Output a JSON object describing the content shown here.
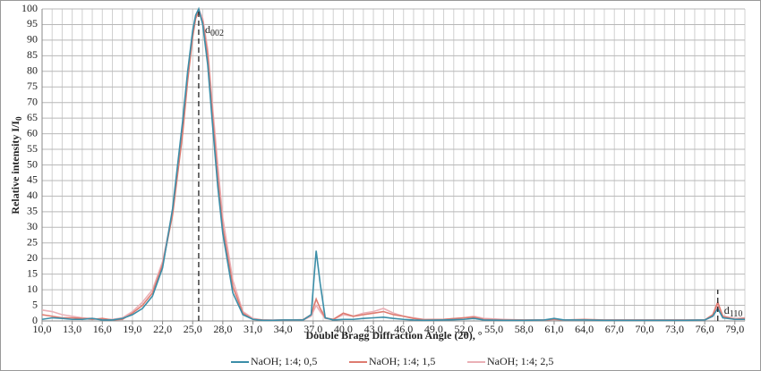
{
  "chart_data": {
    "type": "line",
    "y_label": "Relative intensity I/I",
    "y_label_sub": "0",
    "x_label": "Double Bragg Diffraction Angle (2θ), °",
    "x": [
      10,
      11,
      12,
      13,
      14,
      15,
      16,
      17,
      18,
      19,
      20,
      21,
      22,
      23,
      24,
      24.5,
      25,
      25.3,
      25.6,
      26,
      26.5,
      27,
      27.5,
      28,
      29,
      30,
      31,
      32,
      33,
      34,
      35,
      36,
      36.8,
      37.3,
      37.7,
      38.2,
      39,
      40,
      41,
      42,
      43,
      44,
      45,
      46,
      47,
      48,
      50,
      52,
      53,
      54,
      56,
      58,
      60,
      61,
      62,
      64,
      66,
      68,
      70,
      72,
      74,
      76,
      76.8,
      77.3,
      77.8,
      79,
      80
    ],
    "series": [
      {
        "name": "NaOH; 1:4; 0,5",
        "color": "#3b8ea8",
        "values": [
          0.5,
          1,
          0.8,
          0.5,
          0.5,
          0.8,
          0.3,
          0.3,
          0.8,
          2,
          4,
          8,
          17,
          36,
          64,
          80,
          93,
          98,
          100,
          95,
          82,
          62,
          43,
          28,
          9,
          2,
          0.5,
          0.2,
          0.2,
          0.3,
          0.3,
          0.3,
          2,
          22.5,
          12,
          1,
          0.3,
          0.5,
          0.5,
          0.8,
          1,
          1.2,
          0.8,
          0.5,
          0.3,
          0.2,
          0.3,
          0.5,
          0.8,
          0.3,
          0.2,
          0.2,
          0.3,
          0.8,
          0.3,
          0.3,
          0.2,
          0.2,
          0.2,
          0.2,
          0.2,
          0.3,
          1.5,
          4,
          1,
          0.5,
          0.5
        ]
      },
      {
        "name": "NaOH; 1:4; 1,5",
        "color": "#de7b70",
        "values": [
          2,
          1.5,
          1,
          1,
          0.8,
          0.5,
          0.8,
          0.3,
          0.5,
          2.5,
          5,
          9,
          18,
          34,
          60,
          77,
          91,
          97,
          99,
          96,
          85,
          65,
          46,
          30,
          11,
          2.5,
          0.5,
          0.3,
          0.2,
          0.3,
          0.3,
          0.4,
          2,
          7,
          4,
          1,
          0.5,
          2.5,
          1.5,
          2,
          2.5,
          3,
          2,
          1.5,
          0.8,
          0.4,
          0.5,
          1,
          1.2,
          0.5,
          0.3,
          0.3,
          0.3,
          0.5,
          0.3,
          0.5,
          0.3,
          0.3,
          0.3,
          0.3,
          0.3,
          0.3,
          2,
          6,
          1.5,
          0.5,
          0.8
        ]
      },
      {
        "name": "NaOH; 1:4; 2,5",
        "color": "#eab0b6",
        "values": [
          3.5,
          3,
          2,
          1.5,
          1,
          0.8,
          0.5,
          0.5,
          1,
          3,
          6,
          10,
          19,
          35,
          61,
          78,
          92,
          98,
          100,
          97,
          87,
          68,
          50,
          33,
          13,
          3,
          0.8,
          0.3,
          0.3,
          0.3,
          0.3,
          0.3,
          1.5,
          5,
          3,
          0.8,
          0.5,
          2,
          1.5,
          2.5,
          3,
          4,
          2.5,
          1.5,
          1,
          0.5,
          0.5,
          1,
          1.5,
          0.8,
          0.5,
          0.3,
          0.3,
          0.5,
          0.3,
          0.3,
          0.3,
          0.3,
          0.3,
          0.3,
          0.3,
          0.3,
          1.5,
          5,
          1.5,
          0.8,
          1
        ]
      }
    ],
    "annotations": [
      {
        "label": "d",
        "sub": "002",
        "x": 25.6,
        "y": 100
      },
      {
        "label": "d",
        "sub": "110",
        "x": 77.3,
        "y": 10
      }
    ],
    "xlim": [
      10,
      80
    ],
    "ylim": [
      0,
      100
    ],
    "xticks": [
      {
        "value": 10,
        "label": "10,0"
      },
      {
        "value": 13,
        "label": "13,0"
      },
      {
        "value": 16,
        "label": "16,0"
      },
      {
        "value": 19,
        "label": "19,0"
      },
      {
        "value": 22,
        "label": "22,0"
      },
      {
        "value": 25,
        "label": "25,0"
      },
      {
        "value": 28,
        "label": "28,0"
      },
      {
        "value": 31,
        "label": "31,0"
      },
      {
        "value": 34,
        "label": "34,0"
      },
      {
        "value": 37,
        "label": "37,0"
      },
      {
        "value": 40,
        "label": "40,0"
      },
      {
        "value": 43,
        "label": "43,0"
      },
      {
        "value": 46,
        "label": "46,0"
      },
      {
        "value": 49,
        "label": "49,0"
      },
      {
        "value": 52,
        "label": "52,0"
      },
      {
        "value": 55,
        "label": "55,0"
      },
      {
        "value": 58,
        "label": "58,0"
      },
      {
        "value": 61,
        "label": "61,0"
      },
      {
        "value": 64,
        "label": "64,0"
      },
      {
        "value": 67,
        "label": "67,0"
      },
      {
        "value": 70,
        "label": "70,0"
      },
      {
        "value": 73,
        "label": "73,0"
      },
      {
        "value": 76,
        "label": "76,0"
      },
      {
        "value": 79,
        "label": "79,0"
      }
    ],
    "yticks": [
      0,
      5,
      10,
      15,
      20,
      25,
      30,
      35,
      40,
      45,
      50,
      55,
      60,
      65,
      70,
      75,
      80,
      85,
      90,
      95,
      100
    ],
    "grid": true,
    "minor_grid_step": 1,
    "legend": "bottom"
  }
}
